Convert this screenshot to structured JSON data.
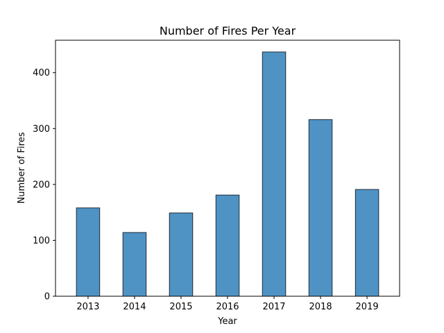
{
  "chart_data": {
    "type": "bar",
    "title": "Number of Fires Per Year",
    "xlabel": "Year",
    "ylabel": "Number of Fires",
    "categories": [
      "2013",
      "2014",
      "2015",
      "2016",
      "2017",
      "2018",
      "2019"
    ],
    "values": [
      158,
      114,
      149,
      181,
      437,
      316,
      191
    ],
    "ylim": [
      0,
      458
    ],
    "yticks": [
      0,
      100,
      200,
      300,
      400
    ],
    "grid": false,
    "colors": {
      "bar_fill": "#4f93c5",
      "bar_edge": "#1f2a36"
    }
  }
}
